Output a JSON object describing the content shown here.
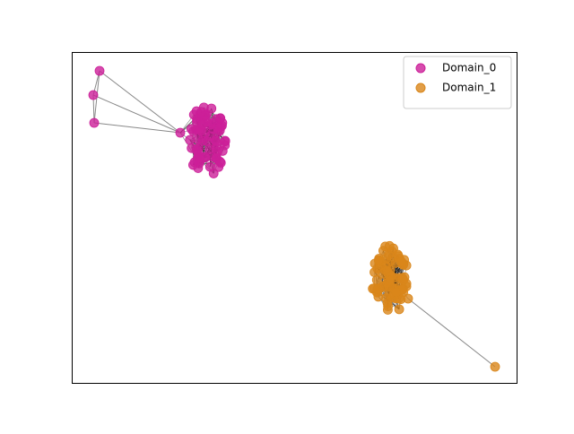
{
  "chart_data": {
    "type": "network",
    "series": [
      {
        "name": "Domain_0",
        "color": "#cc1f99"
      },
      {
        "name": "Domain_1",
        "color": "#d9861a"
      }
    ],
    "legend": "upper right"
  }
}
